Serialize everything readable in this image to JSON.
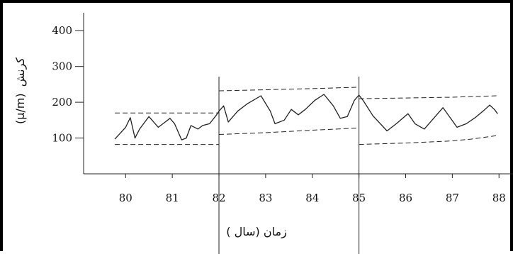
{
  "chart_data": {
    "type": "line",
    "xlabel": "زمان (سال )",
    "ylabel": "کرنش (μ/m)",
    "ylabel_text": "کرنش",
    "ylabel_unit": "(μ/m)",
    "xlim": [
      79.1,
      88.3
    ],
    "ylim": [
      0,
      450
    ],
    "x_ticks": [
      80,
      81,
      82,
      83,
      84,
      85,
      86,
      87,
      88
    ],
    "y_ticks": [
      100,
      200,
      300,
      400
    ],
    "grid": false,
    "vertical_lines": [
      82,
      85
    ],
    "series": [
      {
        "style": "solid",
        "x": [
          79.77,
          80.0,
          80.1,
          80.2,
          80.3,
          80.5,
          80.7,
          80.8,
          80.95,
          81.05,
          81.2,
          81.3,
          81.4,
          81.55,
          81.65,
          81.8,
          81.95,
          82.0,
          82.1,
          82.2,
          82.4,
          82.6,
          82.9,
          83.1,
          83.2,
          83.4,
          83.55,
          83.7,
          83.85,
          84.05,
          84.25,
          84.45,
          84.6,
          84.75,
          84.9,
          85.0,
          85.1,
          85.3,
          85.6,
          85.8,
          86.05,
          86.2,
          86.4,
          86.6,
          86.8,
          87.1,
          87.3,
          87.5,
          87.7,
          87.8,
          87.9,
          87.97
        ],
        "y": [
          97,
          130,
          157,
          100,
          125,
          160,
          130,
          140,
          155,
          140,
          95,
          100,
          135,
          125,
          135,
          140,
          165,
          175,
          190,
          145,
          175,
          195,
          218,
          175,
          140,
          150,
          180,
          165,
          180,
          205,
          222,
          190,
          155,
          160,
          205,
          220,
          203,
          162,
          120,
          140,
          168,
          140,
          125,
          155,
          185,
          130,
          140,
          158,
          180,
          192,
          180,
          168
        ]
      },
      {
        "style": "dashed",
        "x": [
          79.77,
          82.0
        ],
        "y": [
          170,
          170
        ]
      },
      {
        "style": "dashed",
        "x": [
          79.77,
          82.0
        ],
        "y": [
          82,
          82
        ]
      },
      {
        "style": "dashed",
        "x": [
          82.0,
          83.0,
          84.0,
          85.0
        ],
        "y": [
          232,
          235,
          238,
          242
        ]
      },
      {
        "style": "dashed",
        "x": [
          82.0,
          83.0,
          84.0,
          85.0
        ],
        "y": [
          110,
          115,
          122,
          128
        ]
      },
      {
        "style": "dashed",
        "x": [
          85.0,
          86.0,
          87.0,
          87.97
        ],
        "y": [
          210,
          212,
          214,
          218
        ]
      },
      {
        "style": "dashed",
        "x": [
          85.0,
          86.0,
          87.0,
          87.4,
          87.97
        ],
        "y": [
          82,
          86,
          92,
          97,
          107
        ]
      }
    ]
  }
}
